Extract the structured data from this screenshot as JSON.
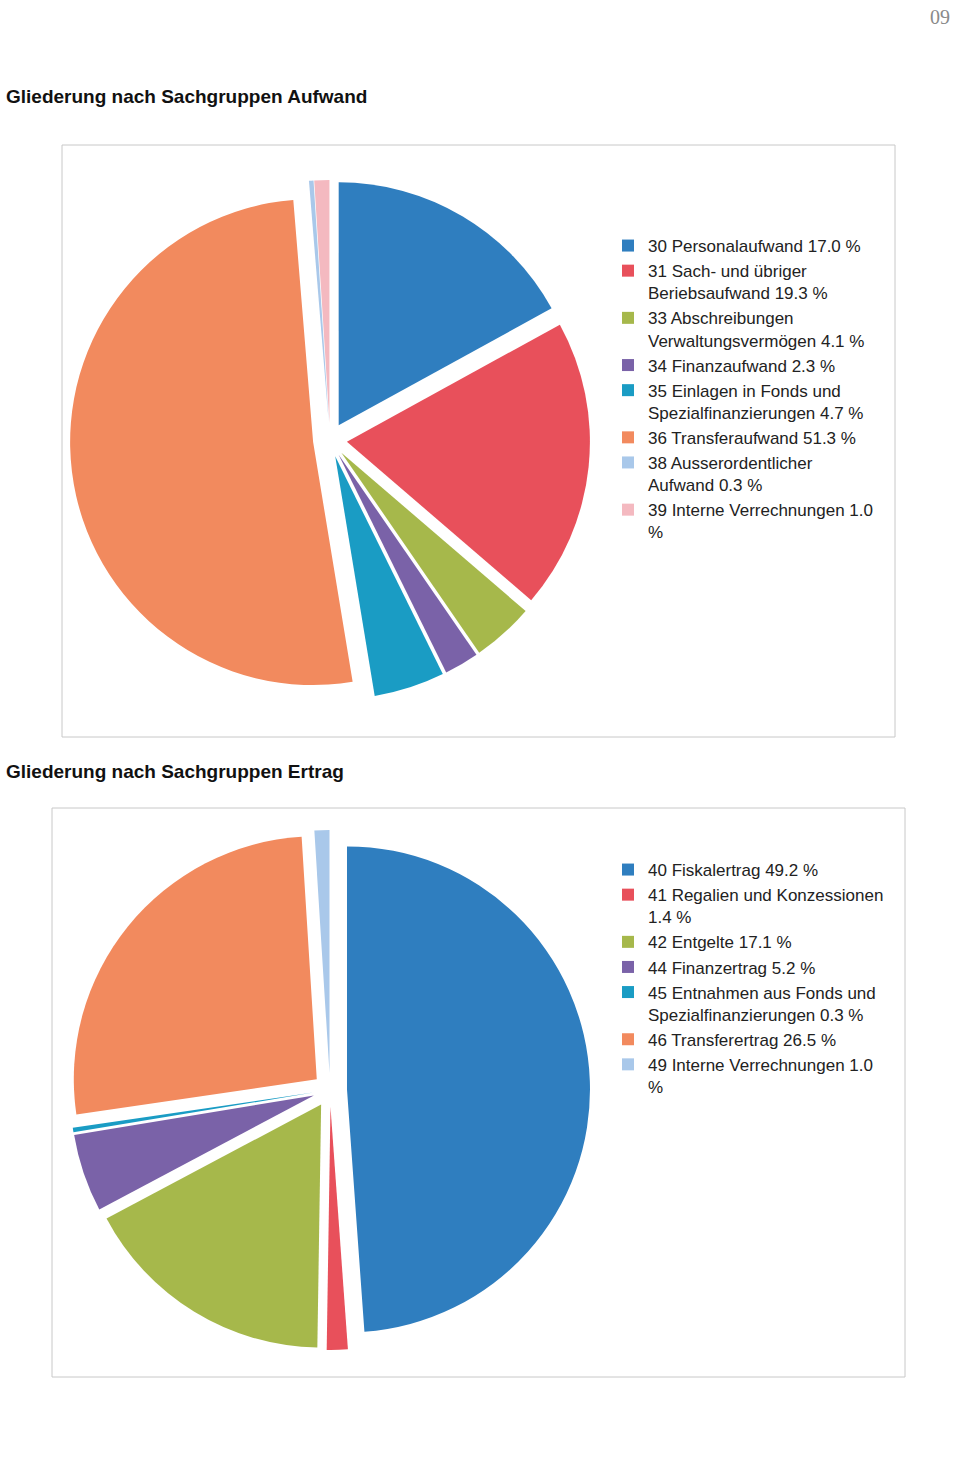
{
  "page_number": "09",
  "chart_data": [
    {
      "type": "pie",
      "title": "Gliederung nach Sachgruppen Aufwand",
      "categories": [
        "30 Personalaufwand 17.0 %",
        "31 Sach- und übriger Beriebsaufwand 19.3 %",
        "33 Abschreibungen Verwaltungsvermögen 4.1 %",
        "34 Finanzaufwand 2.3 %",
        "35 Einlagen in Fonds und Spezialfinanzierungen 4.7 %",
        "36 Transferaufwand 51.3 %",
        "38 Ausserordentlicher Aufwand 0.3 %",
        "39 Interne Verrechnungen 1.0 %"
      ],
      "values": [
        17.0,
        19.3,
        4.1,
        2.3,
        4.7,
        51.3,
        0.3,
        1.0
      ],
      "colors": [
        "#2f7ebf",
        "#e8505b",
        "#a6b84b",
        "#7a62a8",
        "#1a9cc4",
        "#f28a5e",
        "#a9c8ea",
        "#f4b9c0"
      ]
    },
    {
      "type": "pie",
      "title": "Gliederung nach Sachgruppen Ertrag",
      "categories": [
        "40 Fiskalertrag 49.2 %",
        "41 Regalien und Konzessionen 1.4 %",
        "42 Entgelte 17.1 %",
        "44 Finanzertrag 5.2 %",
        "45 Entnahmen aus Fonds und Spezialfinanzierungen 0.3 %",
        "46 Transferertrag 26.5 %",
        "49 Interne Verrechnungen 1.0 %"
      ],
      "values": [
        49.2,
        1.4,
        17.1,
        5.2,
        0.3,
        26.5,
        1.0
      ],
      "colors": [
        "#2f7ebf",
        "#e8505b",
        "#a6b84b",
        "#7a62a8",
        "#1a9cc4",
        "#f28a5e",
        "#a9c8ea"
      ]
    }
  ]
}
